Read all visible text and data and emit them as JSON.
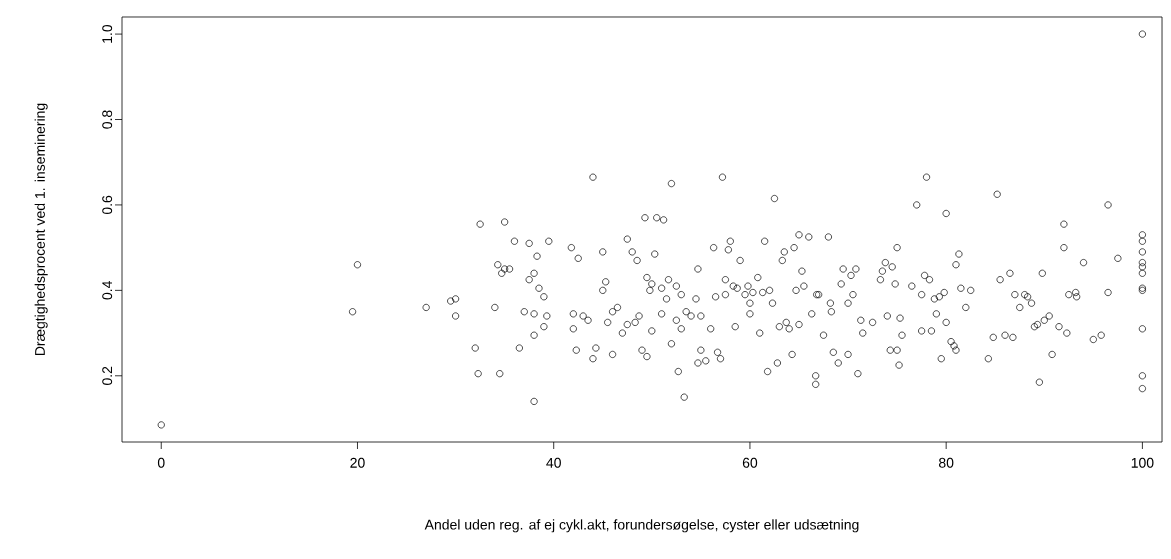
{
  "chart_data": {
    "type": "scatter",
    "xlabel": "Andel uden reg. af ej cykl.akt, forundersøgelse, cyster eller udsætning",
    "ylabel": "Drægtighedsprocent ved 1. inseminering",
    "xlim": [
      -4,
      102
    ],
    "ylim": [
      0.045,
      1.04
    ],
    "xticks": [
      0,
      20,
      40,
      60,
      80,
      100
    ],
    "yticks": [
      {
        "value": 0.2,
        "label": "0.2"
      },
      {
        "value": 0.4,
        "label": "0.4"
      },
      {
        "value": 0.6,
        "label": "0.6"
      },
      {
        "value": 0.8,
        "label": "0.8"
      },
      {
        "value": 1.0,
        "label": "1.0"
      }
    ],
    "marker": "circle",
    "grid": false,
    "series": [
      {
        "color": "#000000",
        "x": [
          0,
          19.5,
          20,
          27,
          29.5,
          30,
          30,
          32,
          32.3,
          32.5,
          34,
          34.3,
          34.5,
          34.7,
          35,
          35,
          35.5,
          36,
          36.5,
          37,
          37.5,
          37.5,
          38,
          38,
          38,
          38,
          38.3,
          38.5,
          39,
          39,
          39.3,
          39.5,
          41.8,
          42,
          42,
          42.3,
          42.5,
          43,
          43.5,
          44,
          44,
          44.3,
          45,
          45,
          45.3,
          45.5,
          46,
          46,
          46.5,
          47,
          47.5,
          47.5,
          48,
          48.3,
          48.5,
          48.7,
          49,
          49.3,
          49.5,
          49.5,
          49.8,
          50,
          50,
          50.3,
          50.5,
          51,
          51,
          51.2,
          51.5,
          51.7,
          52,
          52,
          52.5,
          52.5,
          52.7,
          53,
          53,
          53.3,
          53.5,
          54,
          54.5,
          54.7,
          54.7,
          55,
          55,
          55.5,
          56,
          56.3,
          56.5,
          56.7,
          57,
          57.2,
          57.5,
          57.5,
          57.8,
          58,
          58.3,
          58.5,
          58.7,
          59,
          59.5,
          59.8,
          60,
          60,
          60.3,
          60.8,
          61,
          61.3,
          61.5,
          61.8,
          62,
          62.3,
          62.5,
          62.8,
          63,
          63.3,
          63.5,
          63.7,
          64,
          64.3,
          64.5,
          64.7,
          65,
          65,
          65.3,
          65.5,
          66,
          66.3,
          66.7,
          66.7,
          66.8,
          67,
          67.5,
          68,
          68.2,
          68.3,
          68.5,
          69,
          69.3,
          69.5,
          70,
          70,
          70.3,
          70.5,
          70.8,
          71,
          71.3,
          71.5,
          72.5,
          73.3,
          73.5,
          73.8,
          74,
          74.3,
          74.5,
          74.8,
          75,
          75,
          75.2,
          75.3,
          75.5,
          76.5,
          77,
          77.5,
          77.5,
          77.8,
          78,
          78.3,
          78.5,
          78.8,
          79,
          79.3,
          79.5,
          79.8,
          80,
          80,
          80.5,
          80.8,
          81,
          81,
          81.3,
          81.5,
          82,
          82.5,
          84.3,
          84.8,
          85.2,
          85.5,
          86,
          86.5,
          86.8,
          87,
          87.5,
          88,
          88.3,
          88.7,
          89,
          89.3,
          89.5,
          89.8,
          90,
          90.5,
          90.8,
          91.5,
          92,
          92,
          92.3,
          92.5,
          93.2,
          93.3,
          94,
          95,
          95.8,
          96.5,
          96.5,
          97.5,
          100,
          100,
          100,
          100,
          100,
          100,
          100,
          100,
          100,
          100,
          100,
          100
        ],
        "values": [
          0.085,
          0.35,
          0.46,
          0.36,
          0.375,
          0.38,
          0.34,
          0.265,
          0.205,
          0.555,
          0.36,
          0.46,
          0.205,
          0.44,
          0.56,
          0.45,
          0.45,
          0.515,
          0.265,
          0.35,
          0.51,
          0.425,
          0.345,
          0.295,
          0.44,
          0.14,
          0.48,
          0.405,
          0.385,
          0.315,
          0.34,
          0.515,
          0.5,
          0.345,
          0.31,
          0.26,
          0.475,
          0.34,
          0.33,
          0.24,
          0.665,
          0.265,
          0.49,
          0.4,
          0.42,
          0.325,
          0.25,
          0.35,
          0.36,
          0.3,
          0.52,
          0.32,
          0.49,
          0.325,
          0.47,
          0.34,
          0.26,
          0.57,
          0.43,
          0.245,
          0.4,
          0.415,
          0.305,
          0.485,
          0.57,
          0.405,
          0.345,
          0.565,
          0.38,
          0.425,
          0.65,
          0.275,
          0.41,
          0.33,
          0.21,
          0.39,
          0.31,
          0.15,
          0.35,
          0.34,
          0.38,
          0.45,
          0.23,
          0.34,
          0.26,
          0.235,
          0.31,
          0.5,
          0.385,
          0.255,
          0.24,
          0.665,
          0.425,
          0.39,
          0.495,
          0.515,
          0.41,
          0.315,
          0.405,
          0.47,
          0.39,
          0.41,
          0.37,
          0.345,
          0.395,
          0.43,
          0.3,
          0.395,
          0.515,
          0.21,
          0.4,
          0.37,
          0.615,
          0.23,
          0.315,
          0.47,
          0.49,
          0.325,
          0.31,
          0.25,
          0.5,
          0.4,
          0.53,
          0.32,
          0.445,
          0.41,
          0.525,
          0.345,
          0.2,
          0.18,
          0.39,
          0.39,
          0.295,
          0.525,
          0.37,
          0.35,
          0.255,
          0.23,
          0.415,
          0.45,
          0.37,
          0.25,
          0.435,
          0.39,
          0.45,
          0.205,
          0.33,
          0.3,
          0.325,
          0.425,
          0.445,
          0.465,
          0.34,
          0.26,
          0.455,
          0.415,
          0.5,
          0.26,
          0.225,
          0.335,
          0.295,
          0.41,
          0.6,
          0.39,
          0.305,
          0.435,
          0.665,
          0.425,
          0.305,
          0.38,
          0.345,
          0.385,
          0.24,
          0.395,
          0.58,
          0.325,
          0.28,
          0.27,
          0.46,
          0.26,
          0.485,
          0.405,
          0.36,
          0.4,
          0.24,
          0.29,
          0.625,
          0.425,
          0.295,
          0.44,
          0.29,
          0.39,
          0.36,
          0.39,
          0.385,
          0.37,
          0.315,
          0.32,
          0.185,
          0.44,
          0.33,
          0.34,
          0.25,
          0.315,
          0.555,
          0.5,
          0.3,
          0.39,
          0.395,
          0.385,
          0.465,
          0.285,
          0.295,
          0.6,
          0.395,
          0.475,
          1.0,
          0.53,
          0.515,
          0.49,
          0.465,
          0.455,
          0.44,
          0.405,
          0.4,
          0.31,
          0.2,
          0.17
        ]
      }
    ]
  }
}
